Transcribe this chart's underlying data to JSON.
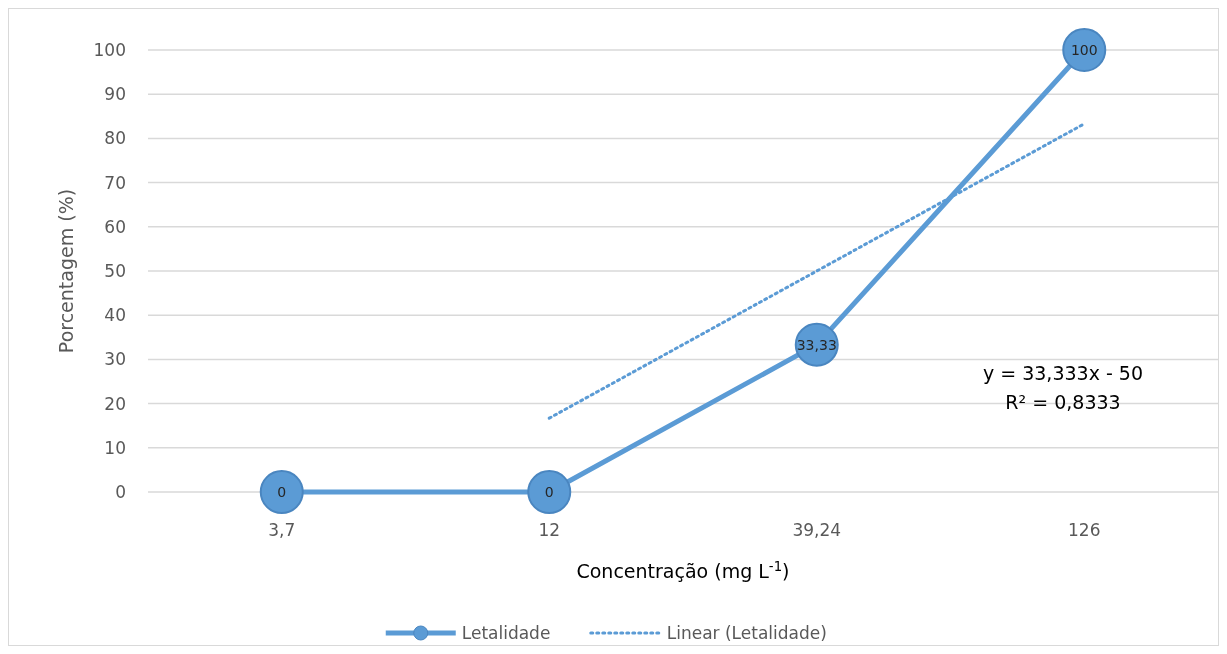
{
  "chart_data": {
    "type": "line",
    "xlabel": "Concentração (mg L$^{-1}$)",
    "ylabel": "Porcentagem (%)",
    "categories": [
      "3,7",
      "12",
      "39,24",
      "126"
    ],
    "series": [
      {
        "name": "Letalidade",
        "color": "#5b9bd5",
        "values": [
          0,
          0,
          33.33,
          100
        ],
        "value_labels": [
          "0",
          "0",
          "33,33",
          "100"
        ],
        "marker": "circle",
        "line_style": "solid"
      },
      {
        "name": "Linear (Letalidade)",
        "color": "#5b9bd5",
        "values": [
          null,
          16.7,
          50,
          83.3
        ],
        "marker": "none",
        "line_style": "dotted"
      }
    ],
    "ylim": [
      0,
      100
    ],
    "yticks": [
      0,
      10,
      20,
      30,
      40,
      50,
      60,
      70,
      80,
      90,
      100
    ],
    "grid": "y",
    "legend": "bottom",
    "annotations": [
      "y = 33,333x - 50",
      "R² = 0,8333"
    ]
  }
}
